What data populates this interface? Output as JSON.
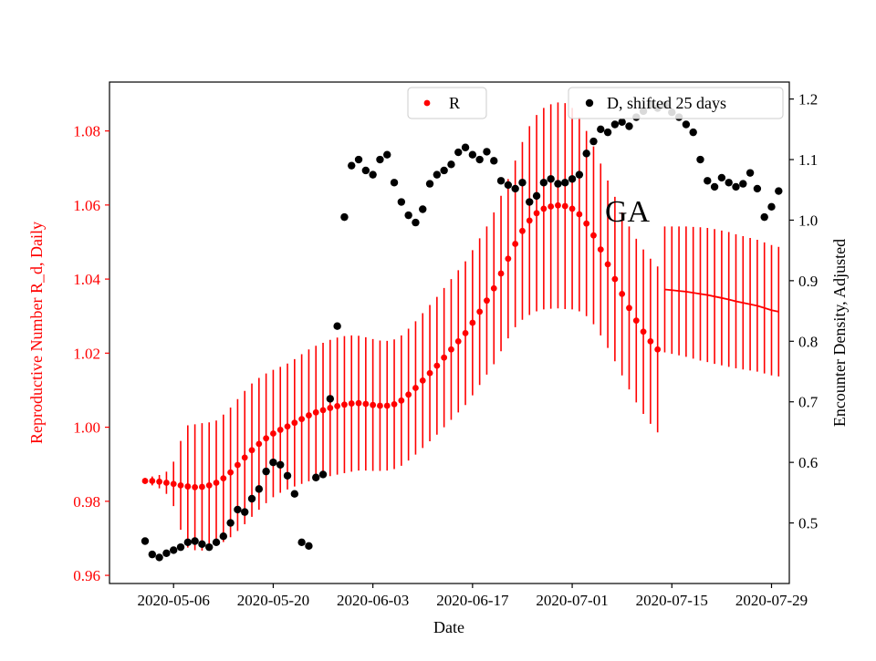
{
  "figure": {
    "background": "#ffffff",
    "annotation": "GA"
  },
  "axes": {
    "xlabel": "Date",
    "ylabel_left": "Reproductive Number R_d, Daily",
    "ylabel_right": "Encounter Density, Adjusted",
    "left_axis_color": "#ff0000",
    "right_axis_color": "#000000"
  },
  "legend": {
    "r_label": "R",
    "d_label": "D, shifted 25 days"
  },
  "chart_data": {
    "type": "scatter",
    "title": "",
    "annotation": "GA",
    "x_unit": "days since 2020-05-02",
    "start_date": "2020-05-02",
    "xlim": [
      -5,
      90.5
    ],
    "x_ticks": [
      {
        "pos": 4,
        "label": "2020-05-06"
      },
      {
        "pos": 18,
        "label": "2020-05-20"
      },
      {
        "pos": 32,
        "label": "2020-06-03"
      },
      {
        "pos": 46,
        "label": "2020-06-17"
      },
      {
        "pos": 60,
        "label": "2020-07-01"
      },
      {
        "pos": 74,
        "label": "2020-07-15"
      },
      {
        "pos": 88,
        "label": "2020-07-29"
      }
    ],
    "left": {
      "name": "R",
      "color": "#ff0000",
      "ylim": [
        0.9578,
        1.0932
      ],
      "ticks": [
        {
          "value": 0.96,
          "label": "0.96"
        },
        {
          "value": 0.98,
          "label": "0.98"
        },
        {
          "value": 1.0,
          "label": "1.00"
        },
        {
          "value": 1.02,
          "label": "1.02"
        },
        {
          "value": 1.04,
          "label": "1.04"
        },
        {
          "value": 1.06,
          "label": "1.06"
        },
        {
          "value": 1.08,
          "label": "1.08"
        }
      ],
      "start_day": 0,
      "points": [
        0.9855,
        0.9855,
        0.9853,
        0.985,
        0.9847,
        0.9843,
        0.984,
        0.9838,
        0.9839,
        0.9843,
        0.985,
        0.9862,
        0.9878,
        0.9898,
        0.9918,
        0.9938,
        0.9955,
        0.997,
        0.9983,
        0.9993,
        1.0002,
        1.0012,
        1.0022,
        1.0032,
        1.004,
        1.0046,
        1.0052,
        1.0057,
        1.0061,
        1.0064,
        1.0065,
        1.0063,
        1.006,
        1.0058,
        1.0058,
        1.0062,
        1.0072,
        1.0088,
        1.0106,
        1.0126,
        1.0146,
        1.0166,
        1.0188,
        1.021,
        1.0232,
        1.0254,
        1.0282,
        1.0312,
        1.0342,
        1.0375,
        1.0415,
        1.0455,
        1.0495,
        1.053,
        1.0558,
        1.0578,
        1.059,
        1.0596,
        1.0599,
        1.0597,
        1.059,
        1.0575,
        1.055,
        1.0518,
        1.048,
        1.044,
        1.04,
        1.036,
        1.0322,
        1.0288,
        1.0258,
        1.0232,
        1.021
      ],
      "errors": [
        0.0008,
        0.0012,
        0.0018,
        0.003,
        0.006,
        0.012,
        0.0165,
        0.017,
        0.0172,
        0.017,
        0.0168,
        0.0172,
        0.0175,
        0.0178,
        0.018,
        0.018,
        0.0178,
        0.0175,
        0.0172,
        0.017,
        0.017,
        0.0172,
        0.0175,
        0.0178,
        0.018,
        0.0182,
        0.0184,
        0.0185,
        0.0185,
        0.0184,
        0.0182,
        0.018,
        0.0178,
        0.0176,
        0.0175,
        0.0175,
        0.0176,
        0.0178,
        0.018,
        0.0182,
        0.0184,
        0.0186,
        0.0188,
        0.019,
        0.0192,
        0.0194,
        0.0196,
        0.0198,
        0.02,
        0.0205,
        0.021,
        0.0215,
        0.0225,
        0.024,
        0.0255,
        0.0265,
        0.0272,
        0.0276,
        0.0278,
        0.0278,
        0.0272,
        0.0262,
        0.025,
        0.024,
        0.0232,
        0.0226,
        0.0222,
        0.022,
        0.022,
        0.0221,
        0.0222,
        0.0223,
        0.0224
      ],
      "line_start_day": 73,
      "line_values": [
        1.0372,
        1.037,
        1.0368,
        1.0366,
        1.0363,
        1.036,
        1.0357,
        1.0353,
        1.0349,
        1.0345,
        1.034,
        1.0336,
        1.0332,
        1.0328,
        1.0322,
        1.0316,
        1.0312
      ],
      "line_errors": [
        0.017,
        0.0172,
        0.0174,
        0.0176,
        0.0178,
        0.018,
        0.0181,
        0.0182,
        0.0182,
        0.0182,
        0.0181,
        0.018,
        0.0179,
        0.0178,
        0.0177,
        0.0176,
        0.0175
      ]
    },
    "right": {
      "name": "D, shifted 25 days",
      "color": "#000000",
      "ylim": [
        0.4,
        1.228
      ],
      "ticks": [
        {
          "value": 0.5,
          "label": "0.5"
        },
        {
          "value": 0.6,
          "label": "0.6"
        },
        {
          "value": 0.7,
          "label": "0.7"
        },
        {
          "value": 0.8,
          "label": "0.8"
        },
        {
          "value": 0.9,
          "label": "0.9"
        },
        {
          "value": 1.0,
          "label": "1.0"
        },
        {
          "value": 1.1,
          "label": "1.1"
        },
        {
          "value": 1.2,
          "label": "1.2"
        }
      ],
      "start_day": 0,
      "points": [
        0.47,
        0.448,
        0.443,
        0.45,
        0.455,
        0.46,
        0.468,
        0.47,
        0.465,
        0.46,
        0.468,
        0.478,
        0.5,
        0.522,
        0.518,
        0.54,
        0.556,
        0.585,
        0.6,
        0.596,
        0.578,
        0.548,
        0.468,
        0.462,
        0.575,
        0.58,
        0.705,
        0.825,
        1.005,
        1.09,
        1.1,
        1.082,
        1.075,
        1.1,
        1.108,
        1.062,
        1.03,
        1.008,
        0.996,
        1.018,
        1.06,
        1.075,
        1.082,
        1.092,
        1.112,
        1.12,
        1.108,
        1.1,
        1.113,
        1.098,
        1.065,
        1.058,
        1.052,
        1.062,
        1.03,
        1.04,
        1.062,
        1.068,
        1.06,
        1.062,
        1.068,
        1.075,
        1.11,
        1.13,
        1.15,
        1.145,
        1.158,
        1.162,
        1.155,
        1.17,
        1.18,
        1.19,
        1.185,
        1.19,
        1.178,
        1.17,
        1.158,
        1.145,
        1.1,
        1.065,
        1.055,
        1.07,
        1.062,
        1.055,
        1.06,
        1.078,
        1.052,
        1.005,
        1.022,
        1.048
      ]
    },
    "legend_position": "top",
    "grid": false
  }
}
